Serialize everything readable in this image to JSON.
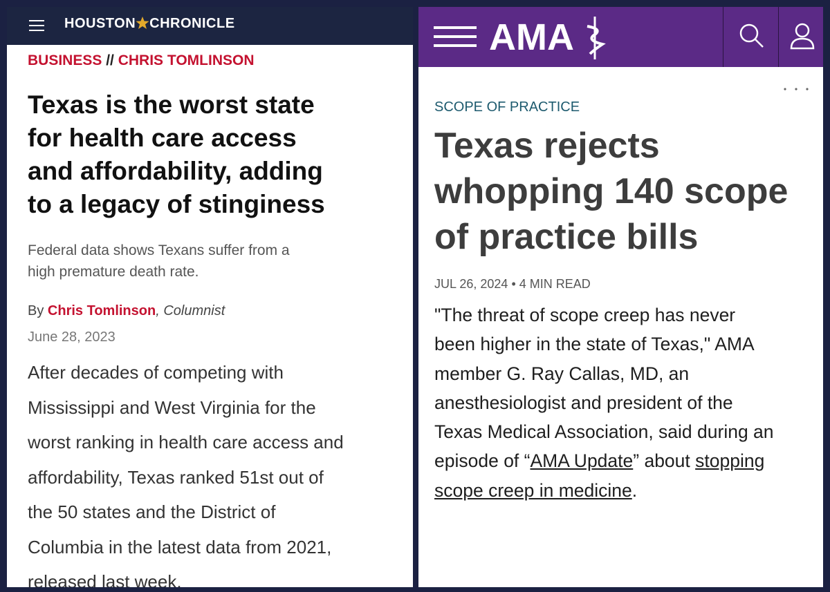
{
  "left": {
    "logo": {
      "first": "HOUSTON",
      "second": "CHRONICLE"
    },
    "section": "BUSINESS",
    "separator": "//",
    "column": "CHRIS TOMLINSON",
    "headline": [
      "Texas is the worst state",
      "for health care access",
      "and affordability, adding",
      "to a legacy of stinginess"
    ],
    "dek": [
      "Federal data shows Texans suffer from a",
      "high premature death rate."
    ],
    "byline": {
      "prefix": "By",
      "author": "Chris Tomlinson",
      "role": ", Columnist"
    },
    "date": "June 28, 2023",
    "body": [
      "After decades of competing with",
      "Mississippi and West Virginia for the",
      "worst ranking in health care access and",
      "affordability, Texas ranked 51st out of",
      "the 50 states and the District of",
      "Columbia in the latest data from 2021,",
      "released last week."
    ]
  },
  "right": {
    "logo": "AMA",
    "category": "SCOPE OF PRACTICE",
    "headline": [
      "Texas rejects",
      "whopping 140 scope",
      "of practice bills"
    ],
    "meta": {
      "date": "JUL 26, 2024",
      "separator": "•",
      "read_time": "4 MIN READ"
    },
    "body": [
      [
        {
          "text": "\"The threat of scope creep has never"
        }
      ],
      [
        {
          "text": "been higher in the state of Texas,\" AMA"
        }
      ],
      [
        {
          "text": "member G. Ray Callas, MD, an"
        }
      ],
      [
        {
          "text": "anesthesiologist and president of the"
        }
      ],
      [
        {
          "text": "Texas Medical Association, said during an"
        }
      ],
      [
        {
          "text": "episode of “"
        },
        {
          "text": "AMA Update",
          "underline": true
        },
        {
          "text": "” about "
        },
        {
          "text": "stopping",
          "underline": true
        }
      ],
      [
        {
          "text": "scope creep in medicine",
          "underline": true
        },
        {
          "text": "."
        }
      ]
    ]
  }
}
